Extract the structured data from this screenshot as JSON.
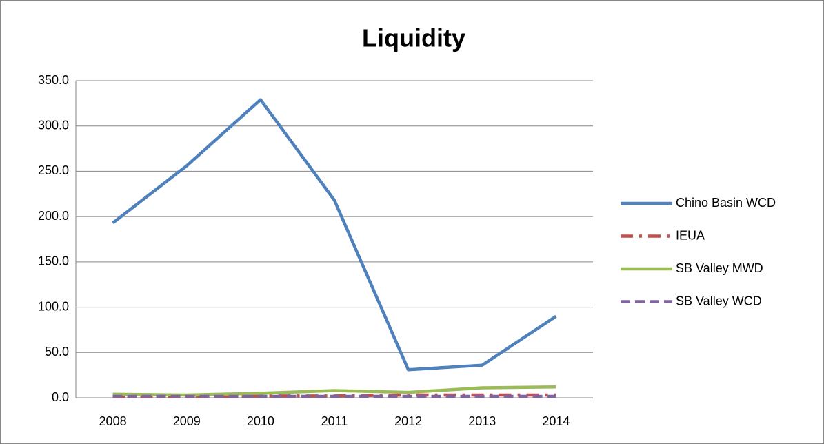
{
  "chart_data": {
    "type": "line",
    "title": "Liquidity",
    "categories": [
      "2008",
      "2009",
      "2010",
      "2011",
      "2012",
      "2013",
      "2014"
    ],
    "series": [
      {
        "name": "Chino Basin WCD",
        "color": "#4f81bd",
        "dash": "solid",
        "values": [
          193,
          256,
          329,
          218,
          31,
          36,
          90
        ]
      },
      {
        "name": "IEUA",
        "color": "#c0504d",
        "dash": "dashdot",
        "values": [
          1,
          1,
          2,
          2,
          3,
          3,
          3
        ]
      },
      {
        "name": "SB Valley MWD",
        "color": "#9bbb59",
        "dash": "solid",
        "values": [
          4,
          3,
          5,
          8,
          6,
          11,
          12
        ]
      },
      {
        "name": "SB Valley WCD",
        "color": "#8064a2",
        "dash": "dash",
        "values": [
          1.5,
          1.5,
          1.5,
          1.5,
          1.5,
          1.5,
          1.5
        ]
      }
    ],
    "ylim": [
      0,
      350
    ],
    "yticks": [
      {
        "value": 0,
        "label": "0.0"
      },
      {
        "value": 50,
        "label": "50.0"
      },
      {
        "value": 100,
        "label": "100.0"
      },
      {
        "value": 150,
        "label": "150.0"
      },
      {
        "value": 200,
        "label": "200.0"
      },
      {
        "value": 250,
        "label": "250.0"
      },
      {
        "value": 300,
        "label": "300.0"
      },
      {
        "value": 350,
        "label": "350.0"
      }
    ],
    "grid": true,
    "legend": "right"
  }
}
